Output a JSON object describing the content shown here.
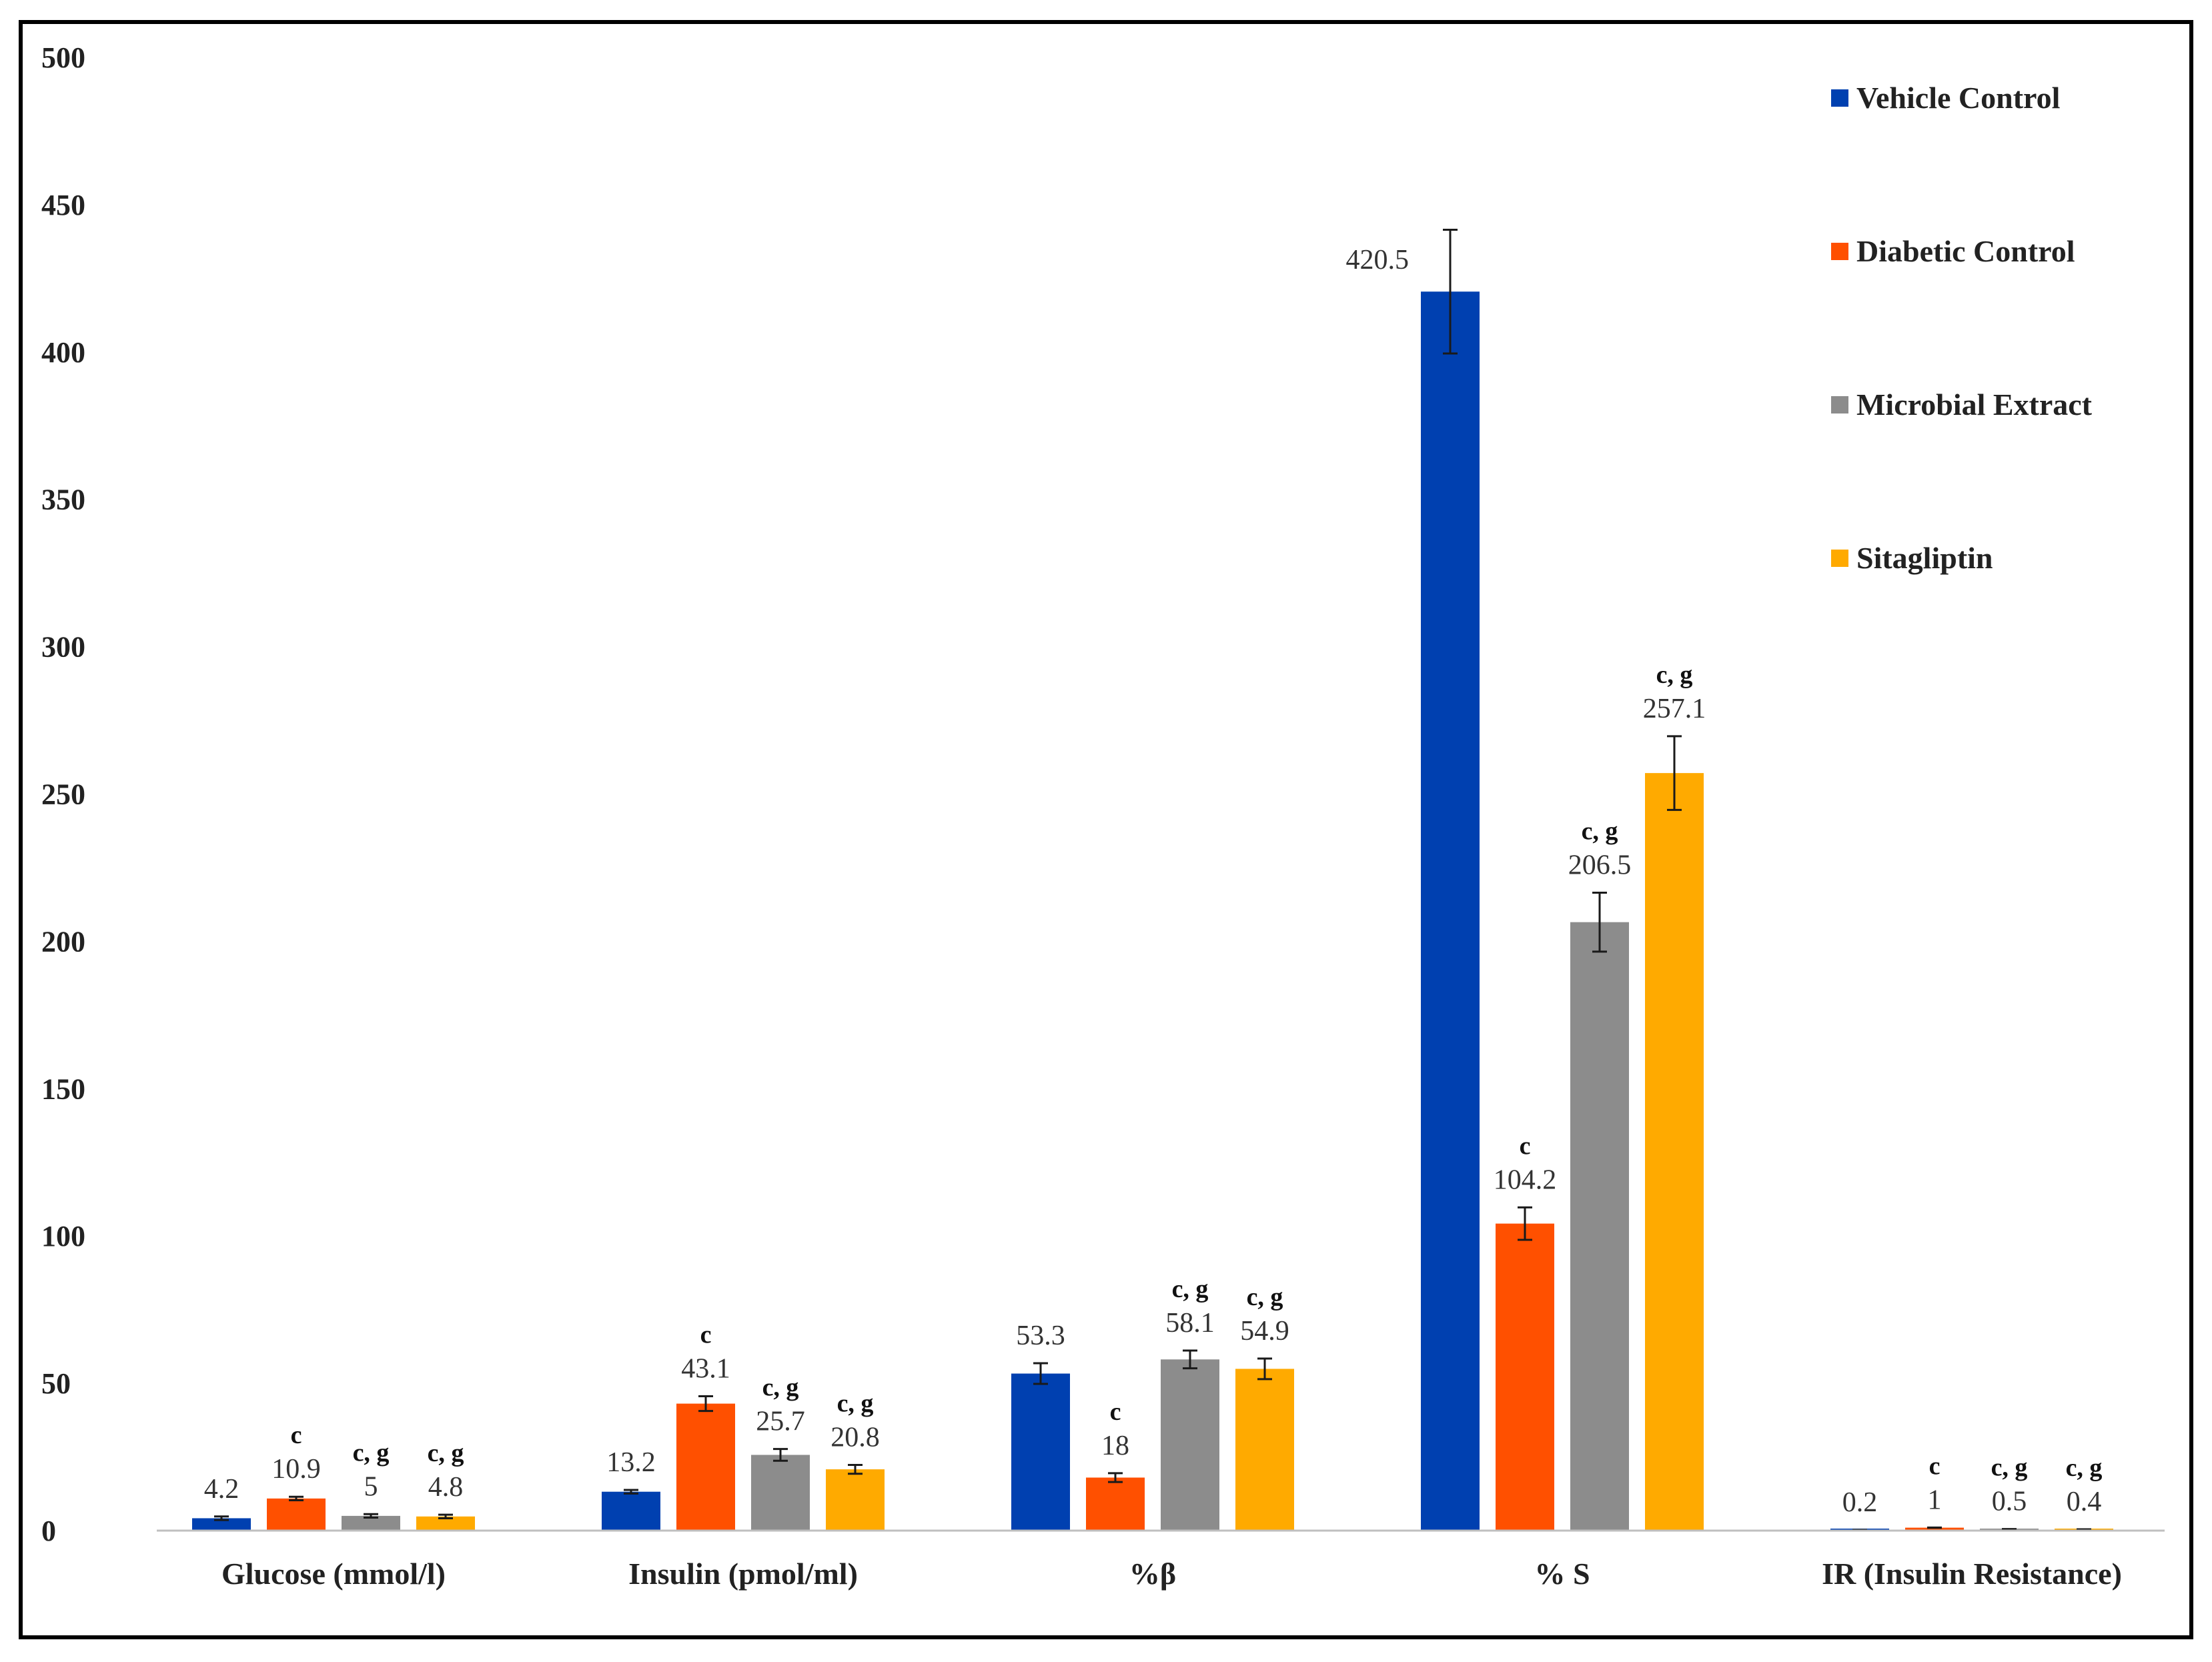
{
  "chart_data": {
    "type": "bar",
    "title": "",
    "xlabel": "",
    "ylabel": "",
    "ylim": [
      0,
      500
    ],
    "yticks": [
      0,
      50,
      100,
      150,
      200,
      250,
      300,
      350,
      400,
      450,
      500
    ],
    "ytick_labels": [
      "0",
      "50",
      "100",
      "150",
      "200",
      "250",
      "300",
      "350",
      "400",
      "450",
      "500"
    ],
    "grid": false,
    "legend_position": "top-right",
    "categories": [
      "Glucose (mmol/l)",
      "Insulin (pmol/ml)",
      "%β",
      "% S",
      "IR (Insulin Resistance)"
    ],
    "series": [
      {
        "name": "Vehicle Control",
        "color": "#0040B0",
        "values": [
          4.2,
          13.2,
          53.3,
          420.5,
          0.2
        ],
        "value_labels": [
          "4.2",
          "13.2",
          "53.3",
          "420.5",
          "0.2"
        ],
        "errors": [
          0.6,
          0.6,
          3.5,
          21,
          0.05
        ],
        "significance": [
          "",
          "",
          "",
          "",
          ""
        ]
      },
      {
        "name": "Diabetic Control",
        "color": "#FF5000",
        "values": [
          10.9,
          43.1,
          18,
          104.2,
          1
        ],
        "value_labels": [
          "10.9",
          "43.1",
          "18",
          "104.2",
          "1"
        ],
        "errors": [
          0.6,
          2.5,
          1.5,
          5.5,
          0.05
        ],
        "significance": [
          "c",
          "c",
          "c",
          "c",
          "c"
        ]
      },
      {
        "name": "Microbial Extract",
        "color": "#8C8C8C",
        "values": [
          5,
          25.7,
          58.1,
          206.5,
          0.5
        ],
        "value_labels": [
          "5",
          "25.7",
          "58.1",
          "206.5",
          "0.5"
        ],
        "errors": [
          0.6,
          2,
          3,
          10,
          0.05
        ],
        "significance": [
          "c, g",
          "c, g",
          "c, g",
          "c, g",
          "c, g"
        ]
      },
      {
        "name": "Sitagliptin",
        "color": "#FFAA00",
        "values": [
          4.8,
          20.8,
          54.9,
          257.1,
          0.4
        ],
        "value_labels": [
          "4.8",
          "20.8",
          "54.9",
          "257.1",
          "0.4"
        ],
        "errors": [
          0.6,
          1.5,
          3.5,
          12.5,
          0.05
        ],
        "significance": [
          "c, g",
          "c, g",
          "c, g",
          "c, g",
          "c, g"
        ]
      }
    ]
  }
}
